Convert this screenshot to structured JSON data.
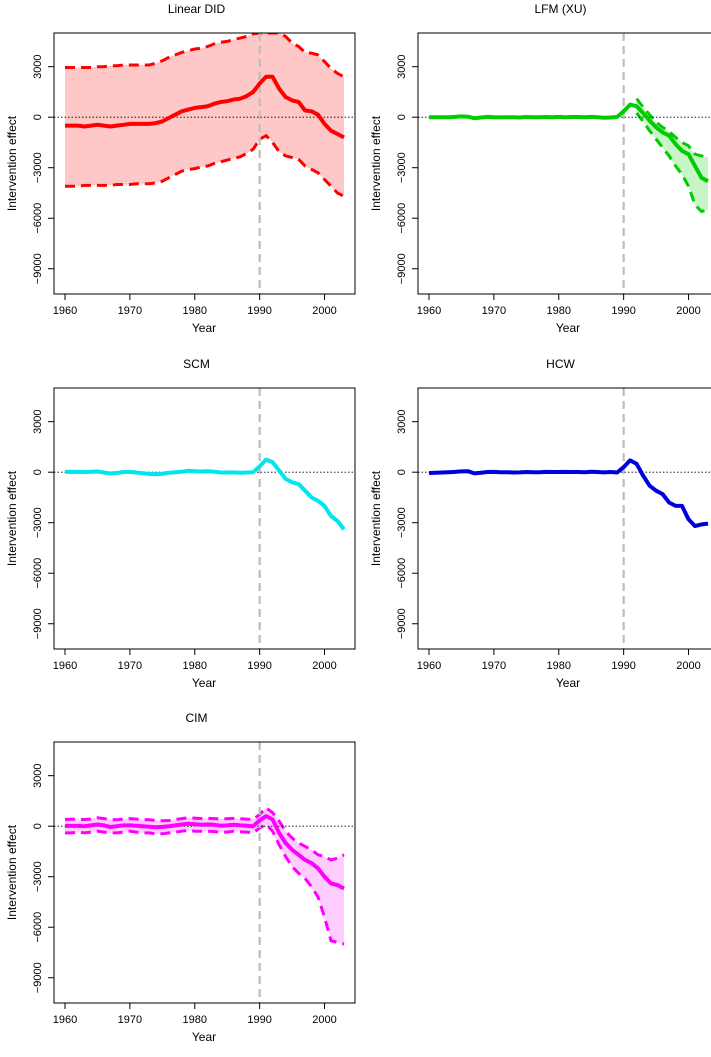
{
  "figure": {
    "xlabel": "Year",
    "ylabel": "Intervention effect",
    "intervention_year": 1990,
    "xlim": [
      1960,
      2003
    ],
    "ylim": [
      -10500,
      5000
    ],
    "xticks": [
      1960,
      1970,
      1980,
      1990,
      2000
    ],
    "yticks": [
      -9000,
      -6000,
      -3000,
      0,
      3000
    ],
    "intervention_line_color": "#bdbdbd"
  },
  "chart_data": [
    {
      "type": "line",
      "title": "Linear DID",
      "color": "#ff0000",
      "band_color": "#ffc8c8",
      "x": [
        1960,
        1961,
        1962,
        1963,
        1964,
        1965,
        1966,
        1967,
        1968,
        1969,
        1970,
        1971,
        1972,
        1973,
        1974,
        1975,
        1976,
        1977,
        1978,
        1979,
        1980,
        1981,
        1982,
        1983,
        1984,
        1985,
        1986,
        1987,
        1988,
        1989,
        1990,
        1991,
        1992,
        1993,
        1994,
        1995,
        1996,
        1997,
        1998,
        1999,
        2000,
        2001,
        2002,
        2003
      ],
      "series": [
        {
          "values": [
            -500,
            -500,
            -500,
            -550,
            -500,
            -450,
            -500,
            -550,
            -500,
            -450,
            -400,
            -400,
            -400,
            -400,
            -350,
            -250,
            -50,
            150,
            350,
            450,
            550,
            600,
            650,
            800,
            900,
            950,
            1050,
            1100,
            1250,
            1500,
            2000,
            2400,
            2400,
            1700,
            1200,
            1000,
            900,
            400,
            350,
            150,
            -400,
            -800,
            -1000,
            -1200
          ]
        }
      ],
      "lower": [
        -4100,
        -4100,
        -4100,
        -4050,
        -4050,
        -4050,
        -4050,
        -4050,
        -4000,
        -4000,
        -4000,
        -3950,
        -3950,
        -3950,
        -3900,
        -3800,
        -3600,
        -3400,
        -3200,
        -3100,
        -3050,
        -2950,
        -2900,
        -2750,
        -2650,
        -2550,
        -2450,
        -2350,
        -2150,
        -1900,
        -1300,
        -1100,
        -1500,
        -2050,
        -2300,
        -2400,
        -2500,
        -2900,
        -3100,
        -3300,
        -3700,
        -4100,
        -4500,
        -4700
      ],
      "upper": [
        2950,
        2950,
        2950,
        2950,
        2950,
        3000,
        3000,
        3050,
        3050,
        3100,
        3100,
        3100,
        3100,
        3100,
        3200,
        3350,
        3550,
        3700,
        3850,
        3950,
        4050,
        4100,
        4200,
        4350,
        4450,
        4500,
        4600,
        4700,
        4800,
        4950,
        5000,
        5000,
        5000,
        5000,
        4800,
        4400,
        4200,
        3850,
        3800,
        3700,
        3300,
        2900,
        2600,
        2400
      ]
    },
    {
      "type": "line",
      "title": "LFM (XU)",
      "color": "#00cc00",
      "band_color": "#c8f5c8",
      "x": [
        1960,
        1961,
        1962,
        1963,
        1964,
        1965,
        1966,
        1967,
        1968,
        1969,
        1970,
        1971,
        1972,
        1973,
        1974,
        1975,
        1976,
        1977,
        1978,
        1979,
        1980,
        1981,
        1982,
        1983,
        1984,
        1985,
        1986,
        1987,
        1988,
        1989,
        1990,
        1991,
        1992,
        1993,
        1994,
        1995,
        1996,
        1997,
        1998,
        1999,
        2000,
        2001,
        2002,
        2003
      ],
      "series": [
        {
          "values": [
            0,
            0,
            0,
            0,
            20,
            50,
            30,
            -60,
            -20,
            20,
            0,
            -10,
            0,
            0,
            -20,
            10,
            0,
            0,
            10,
            0,
            20,
            0,
            10,
            10,
            0,
            20,
            0,
            -30,
            -20,
            20,
            350,
            750,
            650,
            250,
            -200,
            -600,
            -900,
            -1100,
            -1600,
            -2000,
            -2200,
            -2900,
            -3600,
            -3800
          ]
        }
      ],
      "lower": [
        null,
        null,
        null,
        null,
        null,
        null,
        null,
        null,
        null,
        null,
        null,
        null,
        null,
        null,
        null,
        null,
        null,
        null,
        null,
        null,
        null,
        null,
        null,
        null,
        null,
        null,
        null,
        null,
        null,
        null,
        null,
        null,
        250,
        -250,
        -800,
        -1300,
        -1800,
        -2300,
        -2900,
        -3400,
        -4100,
        -5200,
        -5600,
        -5500
      ],
      "upper": [
        null,
        null,
        null,
        null,
        null,
        null,
        null,
        null,
        null,
        null,
        null,
        null,
        null,
        null,
        null,
        null,
        null,
        null,
        null,
        null,
        null,
        null,
        null,
        null,
        null,
        null,
        null,
        null,
        null,
        null,
        null,
        null,
        1100,
        600,
        150,
        -300,
        -600,
        -850,
        -1200,
        -1500,
        -1700,
        -2200,
        -2300,
        -2400
      ]
    },
    {
      "type": "line",
      "title": "SCM",
      "color": "#00e5ee",
      "x": [
        1960,
        1961,
        1962,
        1963,
        1964,
        1965,
        1966,
        1967,
        1968,
        1969,
        1970,
        1971,
        1972,
        1973,
        1974,
        1975,
        1976,
        1977,
        1978,
        1979,
        1980,
        1981,
        1982,
        1983,
        1984,
        1985,
        1986,
        1987,
        1988,
        1989,
        1990,
        1991,
        1992,
        1993,
        1994,
        1995,
        1996,
        1997,
        1998,
        1999,
        2000,
        2001,
        2002,
        2003
      ],
      "series": [
        {
          "values": [
            20,
            30,
            20,
            10,
            30,
            40,
            -20,
            -80,
            -40,
            10,
            20,
            -20,
            -60,
            -100,
            -120,
            -100,
            -30,
            0,
            30,
            80,
            60,
            40,
            60,
            30,
            -20,
            -20,
            -10,
            -30,
            -20,
            0,
            350,
            750,
            600,
            100,
            -400,
            -600,
            -700,
            -1100,
            -1500,
            -1700,
            -2000,
            -2600,
            -2900,
            -3400
          ]
        }
      ]
    },
    {
      "type": "line",
      "title": "HCW",
      "color": "#0000dd",
      "x": [
        1960,
        1961,
        1962,
        1963,
        1964,
        1965,
        1966,
        1967,
        1968,
        1969,
        1970,
        1971,
        1972,
        1973,
        1974,
        1975,
        1976,
        1977,
        1978,
        1979,
        1980,
        1981,
        1982,
        1983,
        1984,
        1985,
        1986,
        1987,
        1988,
        1989,
        1990,
        1991,
        1992,
        1993,
        1994,
        1995,
        1996,
        1997,
        1998,
        1999,
        2000,
        2001,
        2002,
        2003
      ],
      "series": [
        {
          "values": [
            -50,
            -30,
            -20,
            0,
            20,
            50,
            60,
            -70,
            -30,
            10,
            20,
            0,
            0,
            -20,
            -10,
            10,
            0,
            0,
            20,
            10,
            10,
            20,
            10,
            10,
            0,
            30,
            10,
            -10,
            10,
            -20,
            300,
            700,
            500,
            -200,
            -800,
            -1100,
            -1300,
            -1800,
            -2000,
            -2000,
            -2800,
            -3200,
            -3100,
            -3050
          ]
        }
      ]
    },
    {
      "type": "line",
      "title": "CIM",
      "color": "#ff00ff",
      "band_color": "#ffccff",
      "x": [
        1960,
        1961,
        1962,
        1963,
        1964,
        1965,
        1966,
        1967,
        1968,
        1969,
        1970,
        1971,
        1972,
        1973,
        1974,
        1975,
        1976,
        1977,
        1978,
        1979,
        1980,
        1981,
        1982,
        1983,
        1984,
        1985,
        1986,
        1987,
        1988,
        1989,
        1990,
        1991,
        1992,
        1993,
        1994,
        1995,
        1996,
        1997,
        1998,
        1999,
        2000,
        2001,
        2002,
        2003
      ],
      "series": [
        {
          "values": [
            20,
            20,
            20,
            0,
            50,
            100,
            50,
            -50,
            0,
            50,
            50,
            30,
            0,
            -30,
            -60,
            -40,
            0,
            50,
            100,
            150,
            120,
            80,
            100,
            80,
            30,
            50,
            80,
            50,
            30,
            0,
            350,
            600,
            400,
            -400,
            -1000,
            -1400,
            -1700,
            -2000,
            -2200,
            -2500,
            -3000,
            -3400,
            -3500,
            -3700
          ]
        }
      ],
      "lower": [
        -400,
        -400,
        -350,
        -400,
        -350,
        -300,
        -350,
        -400,
        -400,
        -350,
        -300,
        -350,
        -400,
        -400,
        -450,
        -450,
        -400,
        -350,
        -300,
        -250,
        -300,
        -300,
        -300,
        -320,
        -350,
        -350,
        -300,
        -330,
        -350,
        -400,
        -100,
        100,
        -300,
        -1100,
        -1800,
        -2400,
        -2800,
        -3100,
        -3600,
        -4200,
        -5400,
        -6800,
        -6900,
        -7000
      ],
      "upper": [
        400,
        420,
        400,
        400,
        420,
        500,
        450,
        400,
        380,
        420,
        450,
        420,
        400,
        380,
        340,
        320,
        340,
        400,
        450,
        500,
        480,
        450,
        470,
        450,
        420,
        440,
        460,
        440,
        420,
        400,
        700,
        1100,
        800,
        300,
        -300,
        -700,
        -1000,
        -1200,
        -1400,
        -1700,
        -1800,
        -2000,
        -1900,
        -1700
      ]
    }
  ]
}
